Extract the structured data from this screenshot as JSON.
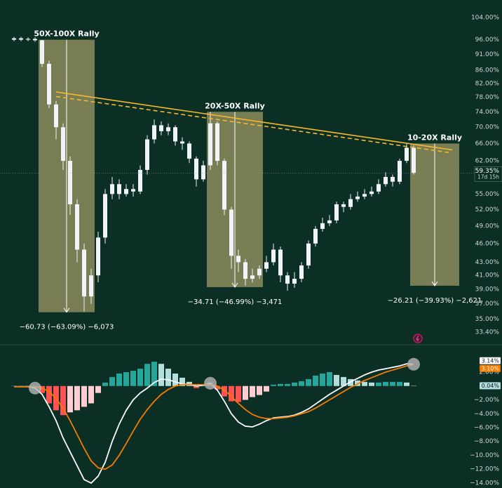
{
  "chart_data": [
    {
      "type": "candlestick",
      "log_scale": true,
      "ylim": [
        32.0,
        110.8
      ],
      "yticks": [
        {
          "value": 104,
          "label": "104.00%"
        },
        {
          "value": 96,
          "label": "96.00%"
        },
        {
          "value": 91,
          "label": "91.00%"
        },
        {
          "value": 86,
          "label": "86.00%"
        },
        {
          "value": 82,
          "label": "82.00%"
        },
        {
          "value": 78,
          "label": "78.00%"
        },
        {
          "value": 74,
          "label": "74.00%"
        },
        {
          "value": 70,
          "label": "70.00%"
        },
        {
          "value": 66,
          "label": "66.00%"
        },
        {
          "value": 62,
          "label": "62.00%"
        },
        {
          "value": 55,
          "label": "55.00%"
        },
        {
          "value": 52,
          "label": "52.00%"
        },
        {
          "value": 49,
          "label": "49.00%"
        },
        {
          "value": 46,
          "label": "46.00%"
        },
        {
          "value": 43,
          "label": "43.00%"
        },
        {
          "value": 41,
          "label": "41.00%"
        },
        {
          "value": 39,
          "label": "39.00%"
        },
        {
          "value": 37,
          "label": "37.00%"
        },
        {
          "value": 35,
          "label": "35.00%"
        },
        {
          "value": 33.4,
          "label": "33.40%"
        }
      ],
      "open": [
        96,
        96.5,
        96,
        96.3,
        95.8,
        88,
        76,
        70,
        62,
        53,
        45,
        38,
        41,
        47,
        55,
        57,
        55,
        56,
        55.5,
        60,
        67,
        70.5,
        69,
        70,
        66.5,
        66,
        62.5,
        58,
        61,
        71,
        62,
        52,
        44,
        43,
        40.5,
        41,
        42,
        43,
        45,
        41,
        39.8,
        40.5,
        42.5,
        46,
        48.5,
        49.5,
        50,
        53,
        52.5,
        54,
        54.5,
        55,
        55.5,
        57,
        58.5,
        57.5,
        62,
        65
      ],
      "high": [
        97,
        97,
        96.8,
        96.8,
        96,
        89,
        77,
        71,
        63,
        54,
        46,
        42,
        48,
        56,
        58.5,
        58,
        57,
        57,
        61,
        68,
        72,
        71.5,
        71,
        70.5,
        67.5,
        66.5,
        63,
        62,
        74,
        71.5,
        62.5,
        52.5,
        45,
        43.5,
        42,
        42.5,
        44,
        46,
        45.5,
        41.5,
        41.5,
        43,
        46.5,
        49,
        50.5,
        51,
        53.5,
        53.5,
        55,
        55.5,
        56,
        56.5,
        58,
        59.5,
        59,
        62.5,
        66,
        65.5
      ],
      "low": [
        95.5,
        95.5,
        95.5,
        95.3,
        87,
        75,
        67,
        60,
        51,
        43,
        36,
        37,
        40,
        46,
        54,
        54,
        54.5,
        54.5,
        55,
        59,
        66,
        68,
        68,
        65.5,
        64.5,
        61.5,
        56.5,
        57.5,
        60,
        61,
        51,
        42,
        41.5,
        39.5,
        40,
        40.5,
        41.5,
        42.5,
        40,
        38.8,
        39.2,
        40,
        42,
        45.5,
        48,
        49,
        49.5,
        51.5,
        52,
        53.5,
        54,
        54.5,
        55,
        56.5,
        56.5,
        57,
        61.5,
        59
      ],
      "close": [
        96.5,
        96,
        96.3,
        95.8,
        88,
        76,
        70,
        62,
        53,
        45,
        38,
        41,
        47,
        55,
        57,
        55,
        56,
        55.5,
        60,
        67,
        70.5,
        69,
        70,
        66.5,
        66,
        62.5,
        58,
        61,
        71,
        62,
        52,
        44,
        43,
        40.5,
        41,
        42,
        43,
        45,
        41,
        39.8,
        40.5,
        42.5,
        46,
        48.5,
        49.5,
        50,
        53,
        52.5,
        54,
        54.5,
        55,
        55.5,
        57,
        58.5,
        57.5,
        62,
        65,
        59.35
      ],
      "last_value_label": "59.35%",
      "countdown": "17d 15h",
      "color": "#f0f3fa",
      "box_color": "#8d8b5c",
      "trendline_color": "#f5b82e",
      "boxes": [
        {
          "label": "50X-100X Rally",
          "measure": "−60.73 (−63.09%) −6,073",
          "start": 4,
          "end": 11,
          "top": 96,
          "bottom": 35.9
        },
        {
          "label": "20X-50X Rally",
          "measure": "−34.71 (−46.99%) −3,471",
          "start": 28,
          "end": 35,
          "top": 74,
          "bottom": 39.3
        },
        {
          "label": "10-20X Rally",
          "measure": "−26.21 (−39.93%) −2,621",
          "start": 57,
          "end": 63,
          "top": 66,
          "bottom": 39.5
        }
      ],
      "trendlines": [
        {
          "start_index": 6,
          "start_value": 79.5,
          "end_index": 62.5,
          "end_value": 64.5,
          "dashed": false
        },
        {
          "start_index": 6,
          "start_value": 78.2,
          "end_index": 62,
          "end_value": 63.9,
          "dashed": true
        }
      ]
    },
    {
      "type": "macd",
      "ylim": [
        -14.71,
        5.85
      ],
      "yticks": [
        {
          "value": 2,
          "label": "2.00%"
        },
        {
          "value": -2,
          "label": "−2.00%"
        },
        {
          "value": -4,
          "label": "−4.00%"
        },
        {
          "value": -6,
          "label": "−6.00%"
        },
        {
          "value": -8,
          "label": "−8.00%"
        },
        {
          "value": -10,
          "label": "−10.00%"
        },
        {
          "value": -12,
          "label": "−12.00%"
        },
        {
          "value": -14,
          "label": "−14.00%"
        }
      ],
      "histogram": {
        "values": [
          0.05,
          0.05,
          0.02,
          -0.2,
          -1,
          -2.5,
          -3.5,
          -4.2,
          -3.8,
          -3.5,
          -3,
          -2.5,
          -1,
          0.5,
          1.3,
          1.8,
          2,
          2.2,
          2.5,
          3.2,
          3.5,
          3.2,
          2.5,
          1.8,
          1.2,
          0.6,
          -0.3,
          0.1,
          0.5,
          -0.5,
          -1.5,
          -2.2,
          -2.3,
          -2,
          -1.6,
          -1.3,
          -0.8,
          0.2,
          0.3,
          0.3,
          0.5,
          0.7,
          1,
          1.5,
          1.8,
          2,
          1.6,
          1.3,
          1,
          0.8,
          0.6,
          0.5,
          0.5,
          0.6,
          0.6,
          0.6,
          0.5,
          0.04
        ],
        "value_label": "0.04%",
        "colors": {
          "positive_rising": "#26a69a",
          "positive_falling": "#b2dfdb",
          "negative_falling": "#ff5252",
          "negative_rising": "#ffcdd2"
        }
      },
      "series": [
        {
          "color": "#ffffff",
          "value_label": "3.14%",
          "values": [
            -0.1,
            -0.1,
            -0.1,
            -0.3,
            -1.2,
            -3,
            -5,
            -7.5,
            -9.5,
            -11.5,
            -13.5,
            -14,
            -13,
            -11,
            -8,
            -5.5,
            -3.5,
            -2,
            -1,
            -0.3,
            0.5,
            1,
            0.9,
            0.6,
            0.3,
            0.2,
            0,
            0.1,
            0.4,
            -0.6,
            -2.2,
            -4,
            -5.2,
            -5.8,
            -5.9,
            -5.5,
            -5,
            -4.6,
            -4.5,
            -4.4,
            -4.2,
            -3.8,
            -3.3,
            -2.6,
            -1.9,
            -1.2,
            -0.6,
            0,
            0.6,
            1.1,
            1.6,
            2,
            2.3,
            2.5,
            2.7,
            2.9,
            3.2,
            3.14
          ]
        },
        {
          "color": "#f57c00",
          "value_label": "3.10%",
          "values": [
            -0.1,
            -0.1,
            -0.1,
            -0.1,
            -0.3,
            -0.8,
            -1.8,
            -3.2,
            -5,
            -7,
            -9,
            -10.8,
            -11.8,
            -12,
            -11.4,
            -10,
            -8.3,
            -6.5,
            -4.8,
            -3.4,
            -2.2,
            -1.2,
            -0.5,
            0,
            0.2,
            0.2,
            0.2,
            0.2,
            0.2,
            0,
            -0.6,
            -1.5,
            -2.5,
            -3.4,
            -4.1,
            -4.5,
            -4.7,
            -4.7,
            -4.6,
            -4.5,
            -4.3,
            -4,
            -3.7,
            -3.2,
            -2.6,
            -2,
            -1.4,
            -0.8,
            -0.2,
            0.3,
            0.8,
            1.2,
            1.6,
            2,
            2.3,
            2.6,
            2.9,
            3.1
          ]
        }
      ],
      "crossovers": [
        3,
        28,
        57
      ]
    }
  ]
}
